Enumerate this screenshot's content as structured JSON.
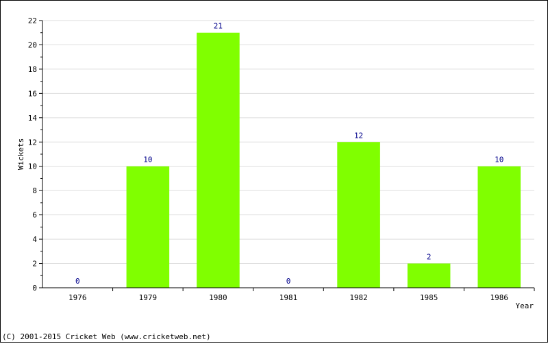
{
  "chart_data": {
    "type": "bar",
    "categories": [
      "1976",
      "1979",
      "1980",
      "1981",
      "1982",
      "1985",
      "1986"
    ],
    "values": [
      0,
      10,
      21,
      0,
      12,
      2,
      10
    ],
    "title": "",
    "xlabel": "Year",
    "ylabel": "Wickets",
    "ylim": [
      0,
      22
    ],
    "ytick_step": 2,
    "grid": true,
    "bar_color": "#80ff00",
    "label_color": "#00008b"
  },
  "footer": "(C) 2001-2015 Cricket Web (www.cricketweb.net)"
}
